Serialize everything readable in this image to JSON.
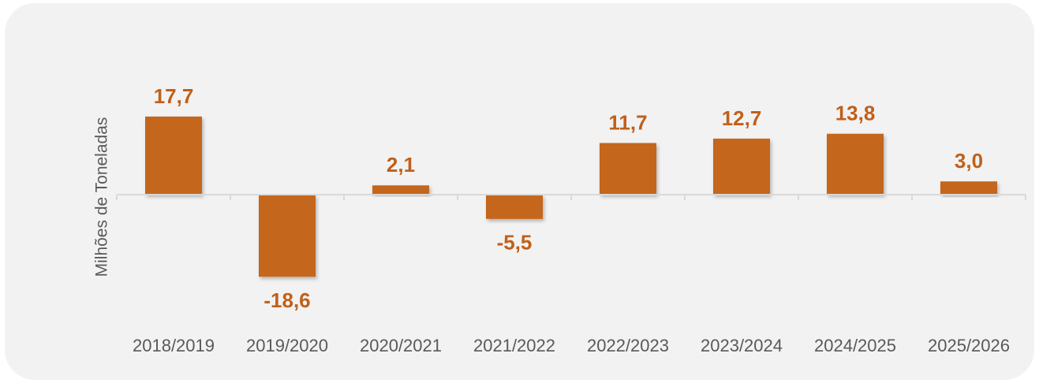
{
  "chart_data": {
    "type": "bar",
    "y_label": "Milhões de Toneladas",
    "categories": [
      "2018/2019",
      "2019/2020",
      "2020/2021",
      "2021/2022",
      "2022/2023",
      "2023/2024",
      "2024/2025",
      "2025/2026"
    ],
    "values": [
      17.7,
      -18.6,
      2.1,
      -5.5,
      11.7,
      12.7,
      13.8,
      3.0
    ],
    "value_labels": [
      "17,7",
      "-18,6",
      "2,1",
      "-5,5",
      "11,7",
      "12,7",
      "13,8",
      "3,0"
    ],
    "color": "#c4661b",
    "ylim": [
      -25,
      25
    ]
  }
}
